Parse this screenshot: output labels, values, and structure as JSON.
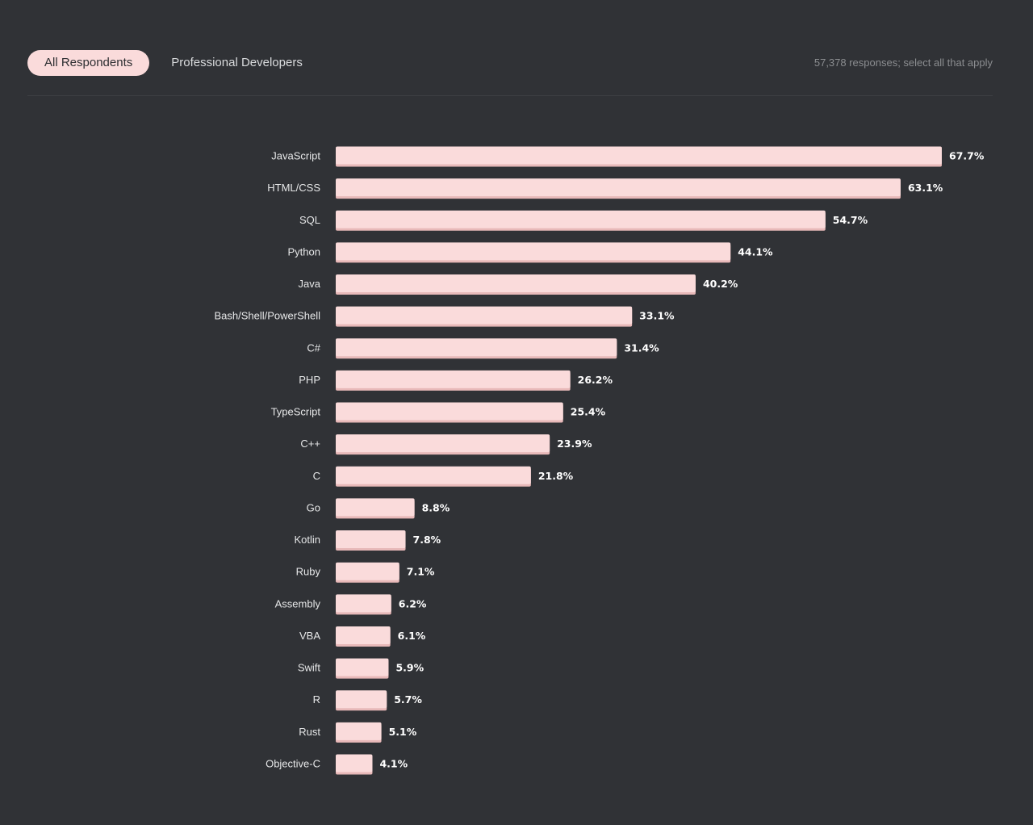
{
  "tabs": [
    {
      "label": "All Respondents",
      "active": true
    },
    {
      "label": "Professional Developers",
      "active": false
    }
  ],
  "meta": {
    "responses_note": "57,378 responses; select all that apply"
  },
  "colors": {
    "background": "#303236",
    "bar": "#fadbdb",
    "bar_shadow": "#e8b9b9",
    "value_text": "#ffffff",
    "label_text": "#e6e7e8"
  },
  "chart_data": {
    "type": "bar",
    "orientation": "horizontal",
    "categories": [
      "JavaScript",
      "HTML/CSS",
      "SQL",
      "Python",
      "Java",
      "Bash/Shell/PowerShell",
      "C#",
      "PHP",
      "TypeScript",
      "C++",
      "C",
      "Go",
      "Kotlin",
      "Ruby",
      "Assembly",
      "VBA",
      "Swift",
      "R",
      "Rust",
      "Objective-C"
    ],
    "values": [
      67.7,
      63.1,
      54.7,
      44.1,
      40.2,
      33.1,
      31.4,
      26.2,
      25.4,
      23.9,
      21.8,
      8.8,
      7.8,
      7.1,
      6.2,
      6.1,
      5.9,
      5.7,
      5.1,
      4.1
    ],
    "value_labels": [
      "67.7%",
      "63.1%",
      "54.7%",
      "44.1%",
      "40.2%",
      "33.1%",
      "31.4%",
      "26.2%",
      "25.4%",
      "23.9%",
      "21.8%",
      "8.8%",
      "7.8%",
      "7.1%",
      "6.2%",
      "6.1%",
      "5.9%",
      "5.7%",
      "5.1%",
      "4.1%"
    ],
    "unit": "%",
    "title": "",
    "xlabel": "",
    "ylabel": "",
    "xlim": [
      0,
      67.7
    ],
    "grid": false,
    "legend": "none"
  }
}
